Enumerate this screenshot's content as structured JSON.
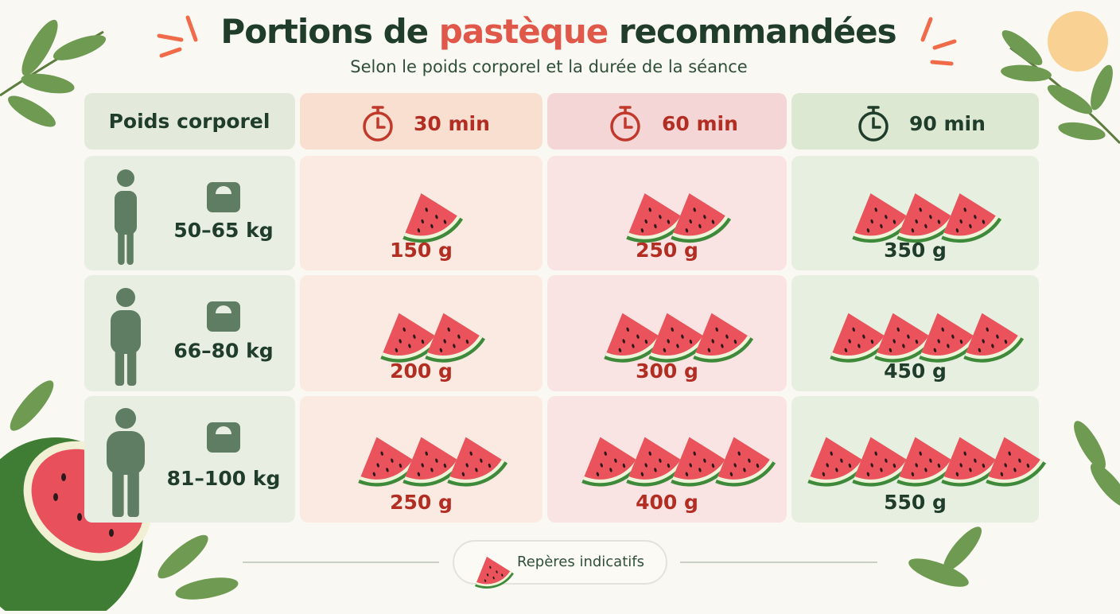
{
  "header": {
    "title": [
      "Portions de ",
      "pastèque",
      " recommandées"
    ],
    "subtitle": "Selon le poids corporel et la durée de la séance"
  },
  "table": {
    "columns": [
      "Poids corporel",
      "30 min",
      "60 min",
      "90 min"
    ],
    "rows": [
      {
        "weight": "50–65 kg",
        "portions": [
          "150 g",
          "250 g",
          "350 g"
        ]
      },
      {
        "weight": "66–80 kg",
        "portions": [
          "200 g",
          "300 g",
          "450 g"
        ]
      },
      {
        "weight": "81–100 kg",
        "portions": [
          "250 g",
          "400 g",
          "550 g"
        ]
      }
    ]
  },
  "footer": {
    "note": "Repères indicatifs"
  }
}
